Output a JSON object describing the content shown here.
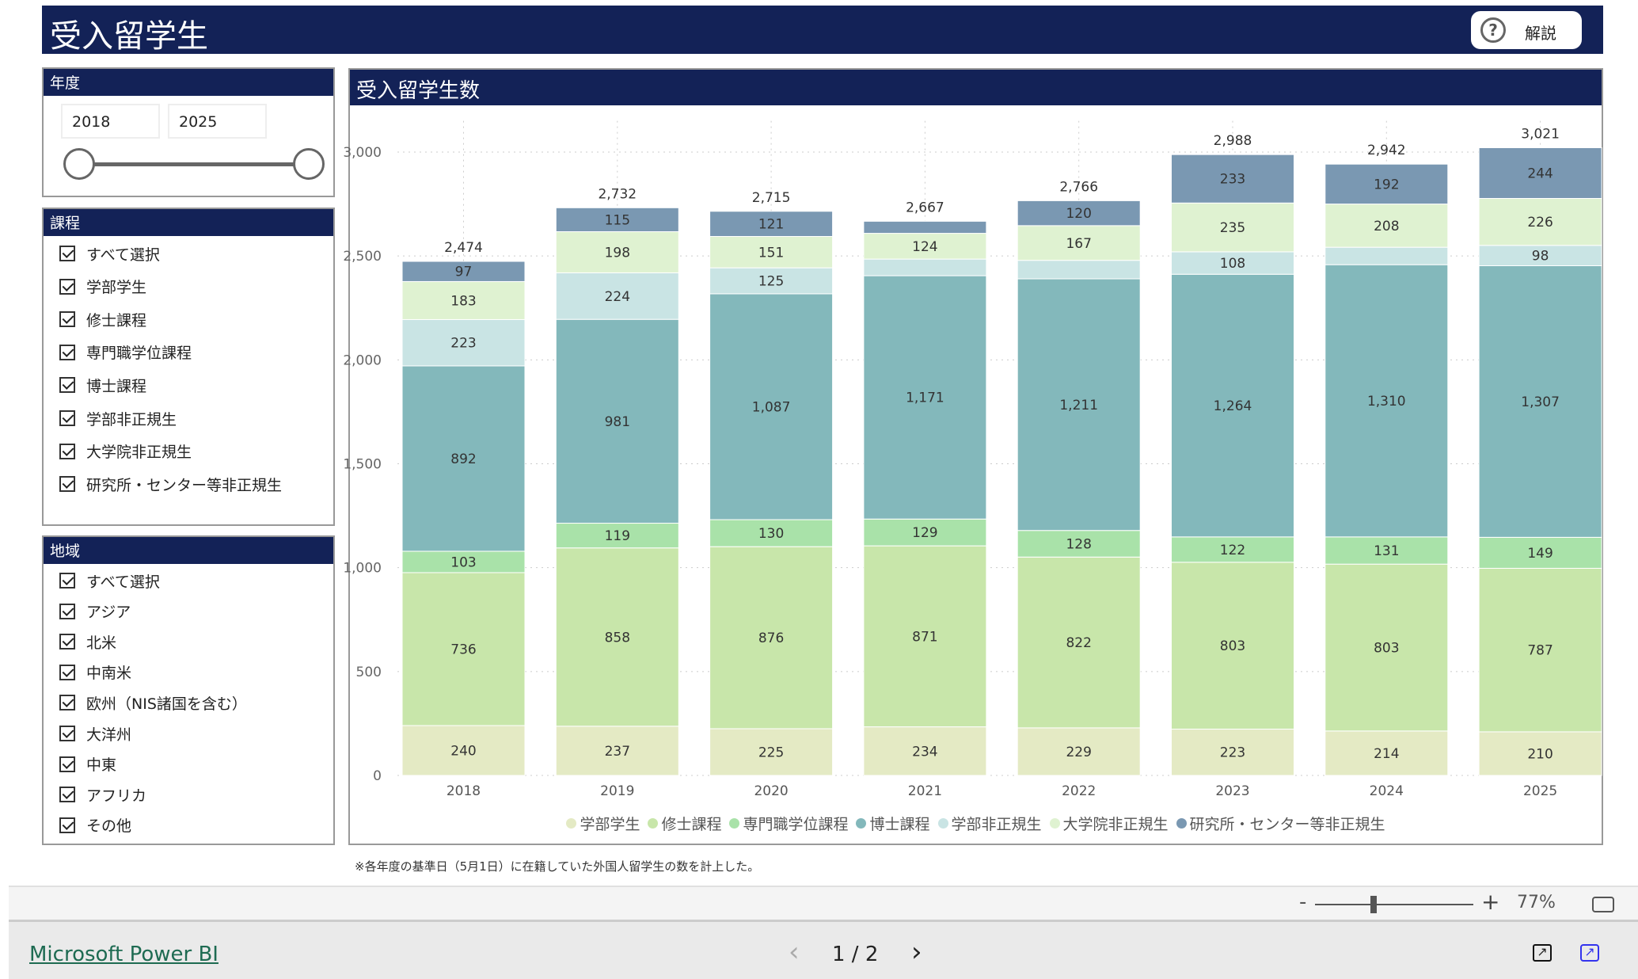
{
  "header": {
    "title": "受入留学生",
    "help_label": "解説"
  },
  "year_filter": {
    "title": "年度",
    "from": "2018",
    "to": "2025"
  },
  "course_filter": {
    "title": "課程",
    "items": [
      "すべて選択",
      "学部学生",
      "修士課程",
      "専門職学位課程",
      "博士課程",
      "学部非正規生",
      "大学院非正規生",
      "研究所・センター等非正規生"
    ]
  },
  "region_filter": {
    "title": "地域",
    "items": [
      "すべて選択",
      "アジア",
      "北米",
      "中南米",
      "欧州（NIS諸国を含む）",
      "大洋州",
      "中東",
      "アフリカ",
      "その他"
    ]
  },
  "chart_data": {
    "type": "bar",
    "stacked": true,
    "title": "受入留学生数",
    "categories": [
      "2018",
      "2019",
      "2020",
      "2021",
      "2022",
      "2023",
      "2024",
      "2025"
    ],
    "ylim": [
      0,
      3000
    ],
    "yticks": [
      0,
      500,
      1000,
      1500,
      2000,
      2500,
      3000
    ],
    "ytick_labels": [
      "0",
      "500",
      "1,000",
      "1,500",
      "2,000",
      "2,500",
      "3,000"
    ],
    "totals": [
      2474,
      2732,
      2715,
      2667,
      2766,
      2988,
      2942,
      3021
    ],
    "legend_position": "bottom",
    "grid": true,
    "series": [
      {
        "name": "学部学生",
        "color": "#e4eac4",
        "values": [
          240,
          237,
          225,
          234,
          229,
          223,
          214,
          210
        ]
      },
      {
        "name": "修士課程",
        "color": "#c8e6aa",
        "values": [
          736,
          858,
          876,
          871,
          822,
          803,
          803,
          787
        ]
      },
      {
        "name": "専門職学位課程",
        "color": "#a9e2a9",
        "values": [
          103,
          119,
          130,
          129,
          128,
          122,
          131,
          149
        ]
      },
      {
        "name": "博士課程",
        "color": "#83b8bb",
        "values": [
          892,
          981,
          1087,
          1171,
          1211,
          1264,
          1310,
          1307
        ]
      },
      {
        "name": "学部非正規生",
        "color": "#c9e4e4",
        "values": [
          223,
          224,
          125,
          80,
          89,
          108,
          84,
          98
        ]
      },
      {
        "name": "大学院非正規生",
        "color": "#dff2d1",
        "values": [
          183,
          198,
          151,
          124,
          167,
          235,
          208,
          226
        ]
      },
      {
        "name": "研究所・センター等非正規生",
        "color": "#7a98b2",
        "values": [
          97,
          115,
          121,
          58,
          120,
          233,
          192,
          244
        ]
      }
    ]
  },
  "footnote": "※各年度の基準日（5月1日）に在籍していた外国人留学生の数を計上した。",
  "zoom": {
    "minus": "-",
    "plus": "+",
    "level": "77%"
  },
  "footer": {
    "brand": "Microsoft Power BI",
    "page": "1 / 2",
    "prev": "‹",
    "next": "›"
  }
}
